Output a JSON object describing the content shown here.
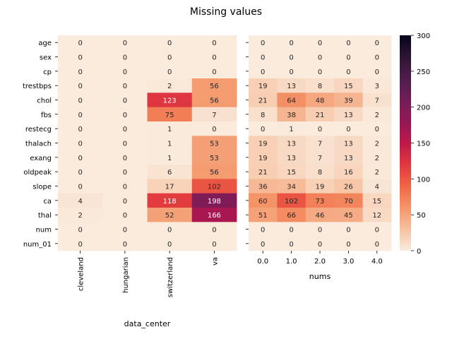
{
  "title": "Missing values",
  "chart_data": [
    {
      "type": "heatmap",
      "xlabel": "data_center",
      "ylabel": "",
      "x": [
        "cleveland",
        "hungarian",
        "switzerland",
        "va"
      ],
      "y": [
        "age",
        "sex",
        "cp",
        "trestbps",
        "chol",
        "fbs",
        "restecg",
        "thalach",
        "exang",
        "oldpeak",
        "slope",
        "ca",
        "thal",
        "num",
        "num_01"
      ],
      "values": [
        [
          0,
          0,
          0,
          0
        ],
        [
          0,
          0,
          0,
          0
        ],
        [
          0,
          0,
          0,
          0
        ],
        [
          0,
          0,
          2,
          56
        ],
        [
          0,
          0,
          123,
          56
        ],
        [
          0,
          0,
          75,
          7
        ],
        [
          0,
          0,
          1,
          0
        ],
        [
          0,
          0,
          1,
          53
        ],
        [
          0,
          0,
          1,
          53
        ],
        [
          0,
          0,
          6,
          56
        ],
        [
          0,
          0,
          17,
          102
        ],
        [
          4,
          0,
          118,
          198
        ],
        [
          2,
          0,
          52,
          166
        ],
        [
          0,
          0,
          0,
          0
        ],
        [
          0,
          0,
          0,
          0
        ]
      ]
    },
    {
      "type": "heatmap",
      "xlabel": "nums",
      "ylabel": "",
      "x": [
        "0.0",
        "1.0",
        "2.0",
        "3.0",
        "4.0"
      ],
      "y": [
        "age",
        "sex",
        "cp",
        "trestbps",
        "chol",
        "fbs",
        "restecg",
        "thalach",
        "exang",
        "oldpeak",
        "slope",
        "ca",
        "thal",
        "num",
        "num_01"
      ],
      "values": [
        [
          0,
          0,
          0,
          0,
          0
        ],
        [
          0,
          0,
          0,
          0,
          0
        ],
        [
          0,
          0,
          0,
          0,
          0
        ],
        [
          19,
          13,
          8,
          15,
          3
        ],
        [
          21,
          64,
          48,
          39,
          7
        ],
        [
          8,
          38,
          21,
          13,
          2
        ],
        [
          0,
          1,
          0,
          0,
          0
        ],
        [
          19,
          13,
          7,
          13,
          2
        ],
        [
          19,
          13,
          7,
          13,
          2
        ],
        [
          21,
          15,
          8,
          16,
          2
        ],
        [
          36,
          34,
          19,
          26,
          4
        ],
        [
          60,
          102,
          73,
          70,
          15
        ],
        [
          51,
          66,
          46,
          45,
          12
        ],
        [
          0,
          0,
          0,
          0,
          0
        ],
        [
          0,
          0,
          0,
          0,
          0
        ]
      ]
    }
  ],
  "colorbar": {
    "colormap": "rocket_r",
    "range": [
      0,
      300
    ],
    "ticks": [
      0,
      50,
      100,
      150,
      200,
      250,
      300
    ]
  }
}
